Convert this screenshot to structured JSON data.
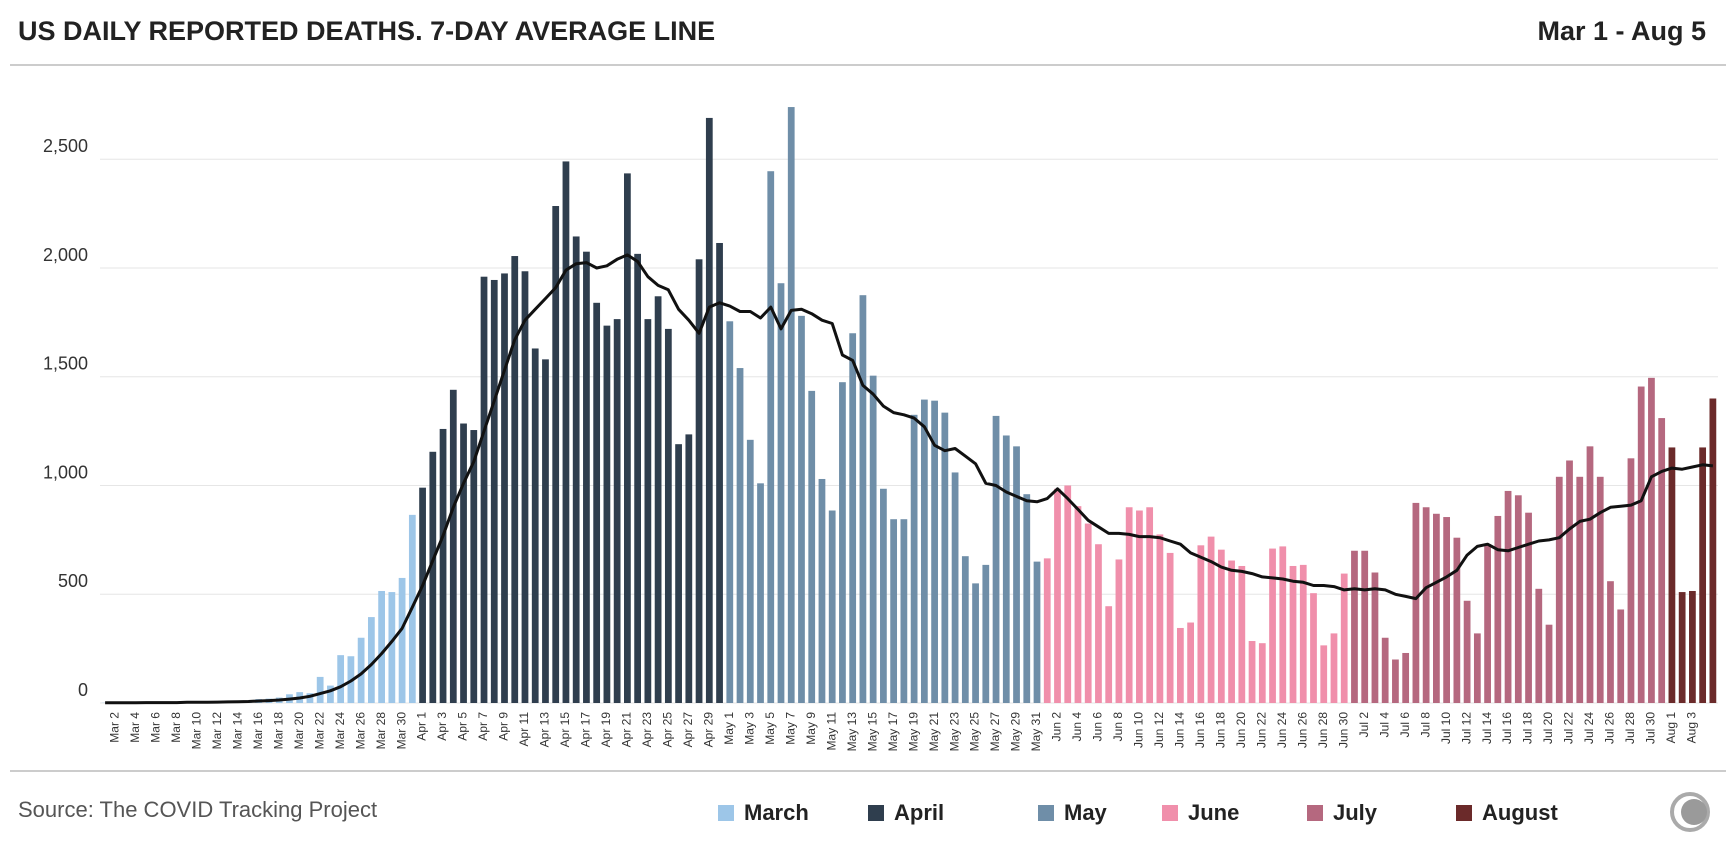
{
  "chart_data": {
    "type": "bar",
    "title": "US DAILY REPORTED DEATHS. 7-DAY AVERAGE LINE",
    "subtitle": "Mar 1 - Aug 5",
    "source": "Source: The COVID Tracking Project",
    "ylim": [
      0,
      2800
    ],
    "yticks": [
      0,
      500,
      {
        "value": 1000,
        "label": "1,000"
      },
      {
        "value": 1500,
        "label": "1,500"
      },
      {
        "value": 2000,
        "label": "2,000"
      },
      {
        "value": 2500,
        "label": "2,500"
      }
    ],
    "grid": true,
    "series": [
      {
        "name": "March",
        "color": "#9dc6e8",
        "categories": [
          null,
          "Mar 2",
          null,
          "Mar 4",
          null,
          "Mar 6",
          null,
          "Mar 8",
          null,
          "Mar 10",
          null,
          "Mar 12",
          null,
          "Mar 14",
          null,
          "Mar 16",
          null,
          "Mar 18",
          null,
          "Mar 20",
          null,
          "Mar 22",
          null,
          "Mar 24",
          null,
          "Mar 26",
          null,
          "Mar 28",
          null,
          "Mar 30",
          null
        ],
        "values": [
          1,
          0,
          2,
          3,
          2,
          2,
          3,
          4,
          4,
          5,
          6,
          4,
          10,
          8,
          12,
          18,
          20,
          25,
          40,
          50,
          45,
          120,
          80,
          220,
          215,
          300,
          395,
          515,
          510,
          575,
          865
        ]
      },
      {
        "name": "April",
        "color": "#2f3e4e",
        "categories": [
          "Apr 1",
          null,
          "Apr 3",
          null,
          "Apr 5",
          null,
          "Apr 7",
          null,
          "Apr 9",
          null,
          "Apr 11",
          null,
          "Apr 13",
          null,
          "Apr 15",
          null,
          "Apr 17",
          null,
          "Apr 19",
          null,
          "Apr 21",
          null,
          "Apr 23",
          null,
          "Apr 25",
          null,
          "Apr 27",
          null,
          "Apr 29",
          null
        ],
        "values": [
          990,
          1155,
          1260,
          1440,
          1285,
          1255,
          1960,
          1945,
          1975,
          2055,
          1985,
          1630,
          1580,
          2285,
          2490,
          2145,
          2075,
          1840,
          1735,
          1765,
          2435,
          2065,
          1765,
          1870,
          1720,
          1190,
          1235,
          2040,
          2690,
          2115
        ]
      },
      {
        "name": "May",
        "color": "#6f8ea8",
        "categories": [
          "May 1",
          null,
          "May 3",
          null,
          "May 5",
          null,
          "May 7",
          null,
          "May 9",
          null,
          "May 11",
          null,
          "May 13",
          null,
          "May 15",
          null,
          "May 17",
          null,
          "May 19",
          null,
          "May 21",
          null,
          "May 23",
          null,
          "May 25",
          null,
          "May 27",
          null,
          "May 29",
          null,
          "May 31"
        ],
        "values": [
          1755,
          1540,
          1210,
          1010,
          2445,
          1930,
          2740,
          1780,
          1435,
          1030,
          885,
          1475,
          1700,
          1875,
          1505,
          985,
          845,
          845,
          1325,
          1395,
          1390,
          1335,
          1060,
          675,
          550,
          635,
          1320,
          1230,
          1180,
          960,
          650
        ]
      },
      {
        "name": "June",
        "color": "#f08fab",
        "categories": [
          null,
          "Jun 2",
          null,
          "Jun 4",
          null,
          "Jun 6",
          null,
          "Jun 8",
          null,
          "Jun 10",
          null,
          "Jun 12",
          null,
          "Jun 14",
          null,
          "Jun 16",
          null,
          "Jun 18",
          null,
          "Jun 20",
          null,
          "Jun 22",
          null,
          "Jun 24",
          null,
          "Jun 26",
          null,
          "Jun 28",
          null,
          "Jun 30"
        ],
        "values": [
          665,
          985,
          1000,
          905,
          825,
          730,
          445,
          660,
          900,
          885,
          900,
          775,
          690,
          345,
          370,
          725,
          765,
          705,
          655,
          630,
          285,
          275,
          710,
          720,
          630,
          635,
          505,
          265,
          320,
          595
        ]
      },
      {
        "name": "July",
        "color": "#b5687f",
        "categories": [
          null,
          "Jul 2",
          null,
          "Jul 4",
          null,
          "Jul 6",
          null,
          "Jul 8",
          null,
          "Jul 10",
          null,
          "Jul 12",
          null,
          "Jul 14",
          null,
          "Jul 16",
          null,
          "Jul 18",
          null,
          "Jul 20",
          null,
          "Jul 22",
          null,
          "Jul 24",
          null,
          "Jul 26",
          null,
          "Jul 28",
          null,
          "Jul 30",
          null
        ],
        "values": [
          700,
          700,
          600,
          300,
          200,
          230,
          920,
          900,
          870,
          855,
          760,
          470,
          320,
          730,
          860,
          975,
          955,
          875,
          525,
          360,
          1040,
          1115,
          1040,
          1180,
          1040,
          560,
          430,
          1125,
          1455,
          1495,
          1310
        ]
      },
      {
        "name": "August",
        "color": "#6b2a2a",
        "categories": [
          "Aug 1",
          null,
          "Aug 3",
          null,
          null
        ],
        "values": [
          1175,
          510,
          515,
          1175,
          1400
        ]
      }
    ],
    "line": {
      "color": "#111111",
      "values": [
        1,
        1,
        1,
        1,
        2,
        2,
        2,
        2,
        3,
        3,
        3,
        4,
        5,
        6,
        7,
        9,
        11,
        14,
        18,
        23,
        31,
        43,
        56,
        75,
        101,
        134,
        177,
        227,
        283,
        343,
        440,
        540,
        655,
        770,
        900,
        1010,
        1110,
        1250,
        1390,
        1530,
        1670,
        1760,
        1810,
        1860,
        1910,
        1990,
        2020,
        2025,
        2000,
        2010,
        2040,
        2060,
        2030,
        1960,
        1920,
        1900,
        1810,
        1760,
        1700,
        1820,
        1840,
        1825,
        1800,
        1800,
        1770,
        1820,
        1720,
        1805,
        1810,
        1790,
        1760,
        1745,
        1600,
        1575,
        1460,
        1420,
        1365,
        1335,
        1325,
        1310,
        1270,
        1185,
        1160,
        1170,
        1135,
        1100,
        1010,
        1000,
        970,
        950,
        930,
        925,
        940,
        985,
        940,
        890,
        840,
        810,
        780,
        780,
        775,
        765,
        765,
        760,
        745,
        730,
        690,
        670,
        650,
        625,
        610,
        605,
        595,
        580,
        575,
        570,
        560,
        555,
        540,
        540,
        535,
        520,
        525,
        520,
        525,
        520,
        500,
        490,
        480,
        530,
        555,
        580,
        610,
        680,
        720,
        730,
        705,
        700,
        715,
        730,
        745,
        750,
        760,
        800,
        835,
        845,
        875,
        900,
        905,
        910,
        930,
        1040,
        1065,
        1080,
        1075,
        1085,
        1095,
        1090
      ]
    }
  }
}
